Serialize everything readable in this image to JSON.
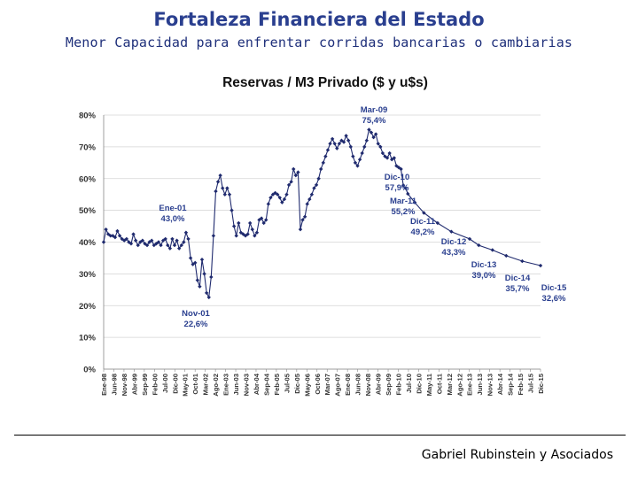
{
  "slide": {
    "title": "Fortaleza Financiera del Estado",
    "subtitle": "Menor Capacidad para enfrentar corridas bancarias o cambiarias",
    "footer": "Gabriel Rubinstein y Asociados"
  },
  "colors": {
    "title": "#2a3f8f",
    "series": "#1f2a6e",
    "grid": "#d4d4d4",
    "axis": "#333333"
  },
  "chart_data": {
    "type": "line",
    "title": "Reservas / M3 Privado ($ y u$s)",
    "xlabel": "",
    "ylabel": "",
    "ylim": [
      0,
      80
    ],
    "yticks": [
      "0%",
      "10%",
      "20%",
      "30%",
      "40%",
      "50%",
      "60%",
      "70%",
      "80%"
    ],
    "grid": true,
    "x_tick_labels": [
      "Ene-98",
      "Jun-98",
      "Nov-98",
      "Abr-99",
      "Sep-99",
      "Feb-00",
      "Jul-00",
      "Dic-00",
      "May-01",
      "Oct-01",
      "Mar-02",
      "Ago-02",
      "Ene-03",
      "Jun-03",
      "Nov-03",
      "Abr-04",
      "Sep-04",
      "Feb-05",
      "Jul-05",
      "Dic-05",
      "May-06",
      "Oct-06",
      "Mar-07",
      "Ago-07",
      "Ene-08",
      "Jun-08",
      "Nov-08",
      "Abr-09",
      "Sep-09",
      "Feb-10",
      "Jul-10",
      "Dic-10",
      "May-11",
      "Oct-11",
      "Mar-12",
      "Ago-12",
      "Ene-13",
      "Jun-13",
      "Nov-13",
      "Abr-14",
      "Sep-14",
      "Feb-15",
      "Jul-15",
      "Dic-15"
    ],
    "series": [
      {
        "name": "Reservas / M3 Privado",
        "points": [
          [
            0,
            40.0
          ],
          [
            1,
            44.0
          ],
          [
            2,
            42.5
          ],
          [
            3,
            42.0
          ],
          [
            4,
            42.0
          ],
          [
            5,
            41.5
          ],
          [
            6,
            43.5
          ],
          [
            7,
            42.0
          ],
          [
            8,
            41.0
          ],
          [
            9,
            40.5
          ],
          [
            10,
            41.0
          ],
          [
            11,
            40.0
          ],
          [
            12,
            39.5
          ],
          [
            13,
            42.5
          ],
          [
            14,
            40.5
          ],
          [
            15,
            39.0
          ],
          [
            16,
            40.0
          ],
          [
            17,
            40.5
          ],
          [
            18,
            39.5
          ],
          [
            19,
            39.0
          ],
          [
            20,
            40.0
          ],
          [
            21,
            40.5
          ],
          [
            22,
            39.0
          ],
          [
            23,
            39.5
          ],
          [
            24,
            40.0
          ],
          [
            25,
            39.0
          ],
          [
            26,
            40.5
          ],
          [
            27,
            41.0
          ],
          [
            28,
            39.0
          ],
          [
            29,
            38.0
          ],
          [
            30,
            41.0
          ],
          [
            31,
            39.0
          ],
          [
            32,
            40.5
          ],
          [
            33,
            38.0
          ],
          [
            34,
            39.0
          ],
          [
            35,
            40.0
          ],
          [
            36,
            43.0
          ],
          [
            37,
            41.0
          ],
          [
            38,
            35.0
          ],
          [
            39,
            33.0
          ],
          [
            40,
            33.5
          ],
          [
            41,
            28.0
          ],
          [
            42,
            26.0
          ],
          [
            43,
            34.5
          ],
          [
            44,
            30.0
          ],
          [
            45,
            24.0
          ],
          [
            46,
            22.6
          ],
          [
            47,
            29.0
          ],
          [
            48,
            42.0
          ],
          [
            49,
            56.0
          ],
          [
            50,
            59.0
          ],
          [
            51,
            61.0
          ],
          [
            52,
            57.0
          ],
          [
            53,
            55.0
          ],
          [
            54,
            57.0
          ],
          [
            55,
            55.0
          ],
          [
            56,
            50.0
          ],
          [
            57,
            45.0
          ],
          [
            58,
            42.0
          ],
          [
            59,
            46.0
          ],
          [
            60,
            43.0
          ],
          [
            61,
            42.5
          ],
          [
            62,
            42.0
          ],
          [
            63,
            42.5
          ],
          [
            64,
            46.0
          ],
          [
            65,
            44.0
          ],
          [
            66,
            42.0
          ],
          [
            67,
            43.0
          ],
          [
            68,
            47.0
          ],
          [
            69,
            47.5
          ],
          [
            70,
            46.0
          ],
          [
            71,
            47.0
          ],
          [
            72,
            52.0
          ],
          [
            73,
            54.0
          ],
          [
            74,
            55.0
          ],
          [
            75,
            55.5
          ],
          [
            76,
            55.0
          ],
          [
            77,
            54.0
          ],
          [
            78,
            52.5
          ],
          [
            79,
            53.5
          ],
          [
            80,
            55.0
          ],
          [
            81,
            58.0
          ],
          [
            82,
            59.0
          ],
          [
            83,
            63.0
          ],
          [
            84,
            61.0
          ],
          [
            85,
            62.0
          ],
          [
            86,
            44.0
          ],
          [
            87,
            47.0
          ],
          [
            88,
            48.0
          ],
          [
            89,
            52.0
          ],
          [
            90,
            53.5
          ],
          [
            91,
            55.0
          ],
          [
            92,
            57.0
          ],
          [
            93,
            58.0
          ],
          [
            94,
            60.0
          ],
          [
            95,
            63.0
          ],
          [
            96,
            65.0
          ],
          [
            97,
            67.0
          ],
          [
            98,
            69.0
          ],
          [
            99,
            71.0
          ],
          [
            100,
            72.5
          ],
          [
            101,
            71.0
          ],
          [
            102,
            69.5
          ],
          [
            103,
            71.0
          ],
          [
            104,
            72.0
          ],
          [
            105,
            71.5
          ],
          [
            106,
            73.5
          ],
          [
            107,
            72.0
          ],
          [
            108,
            70.0
          ],
          [
            109,
            67.0
          ],
          [
            110,
            65.0
          ],
          [
            111,
            64.0
          ],
          [
            112,
            66.0
          ],
          [
            113,
            68.0
          ],
          [
            114,
            70.0
          ],
          [
            115,
            72.0
          ],
          [
            116,
            75.4
          ],
          [
            117,
            74.5
          ],
          [
            118,
            73.0
          ],
          [
            119,
            74.0
          ],
          [
            120,
            71.0
          ],
          [
            121,
            70.0
          ],
          [
            122,
            68.0
          ],
          [
            123,
            67.0
          ],
          [
            124,
            66.5
          ],
          [
            125,
            68.0
          ],
          [
            126,
            66.0
          ],
          [
            127,
            66.5
          ],
          [
            128,
            64.0
          ],
          [
            129,
            63.5
          ],
          [
            130,
            63.0
          ],
          [
            131,
            57.9
          ],
          [
            132,
            57.0
          ],
          [
            133,
            55.2
          ],
          [
            136,
            52.5
          ],
          [
            140,
            49.2
          ],
          [
            146,
            46.0
          ],
          [
            152,
            43.3
          ],
          [
            160,
            41.0
          ],
          [
            164,
            39.0
          ],
          [
            170,
            37.5
          ],
          [
            176,
            35.7
          ],
          [
            183,
            34.0
          ],
          [
            191,
            32.6
          ]
        ]
      }
    ],
    "x_domain": [
      0,
      191
    ],
    "annotations": [
      {
        "text": "Mar-09",
        "value": "75,4%",
        "x": 116,
        "y": 75.4
      },
      {
        "text": "Ene-01",
        "value": "43,0%",
        "x": 36,
        "y": 43.0
      },
      {
        "text": "Nov-01",
        "value": "22,6%",
        "x": 46,
        "y": 22.6
      },
      {
        "text": "Dic-10",
        "value": "57,9%",
        "x": 131,
        "y": 57.9
      },
      {
        "text": "Mar-11",
        "value": "55,2%",
        "x": 133,
        "y": 55.2
      },
      {
        "text": "Dic-11",
        "value": "49,2%",
        "x": 140,
        "y": 49.2
      },
      {
        "text": "Dic-12",
        "value": "43,3%",
        "x": 152,
        "y": 43.3
      },
      {
        "text": "Dic-13",
        "value": "39,0%",
        "x": 164,
        "y": 39.0
      },
      {
        "text": "Dic-14",
        "value": "35,7%",
        "x": 176,
        "y": 35.7
      },
      {
        "text": "Dic-15",
        "value": "32,6%",
        "x": 191,
        "y": 32.6
      }
    ]
  }
}
